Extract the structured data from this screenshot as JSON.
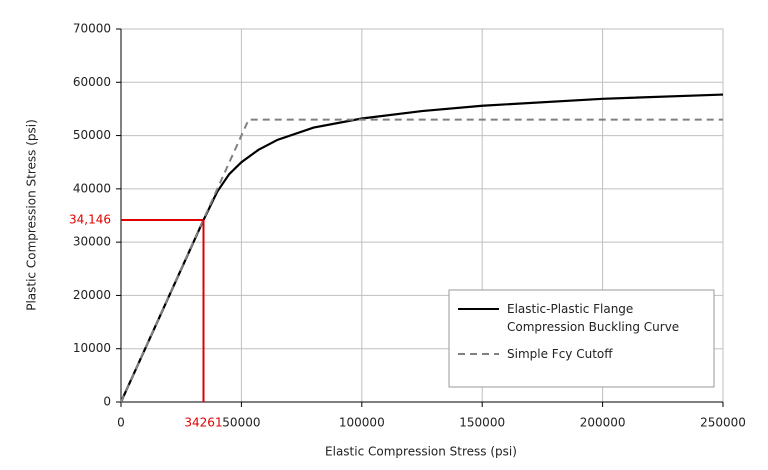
{
  "chart_data": {
    "type": "line",
    "x_label": "Elastic Compression Stress (psi)",
    "y_label": "Plastic Compression Stress (psi)",
    "xlim": [
      0,
      250000
    ],
    "ylim": [
      0,
      70000
    ],
    "xticks": [
      0,
      50000,
      100000,
      150000,
      200000,
      250000
    ],
    "yticks": [
      0,
      10000,
      20000,
      30000,
      40000,
      50000,
      60000,
      70000
    ],
    "grid": true,
    "legend_position": "lower right",
    "series": [
      {
        "name": "Elastic-Plastic Flange Compression Buckling Curve",
        "color": "#000000",
        "dash": false,
        "x": [
          0,
          34261,
          40000,
          45000,
          50000,
          57000,
          65000,
          80000,
          100000,
          125000,
          150000,
          200000,
          250000
        ],
        "values": [
          0,
          34146,
          39500,
          42800,
          45000,
          47300,
          49200,
          51500,
          53200,
          54600,
          55600,
          56900,
          57700
        ]
      },
      {
        "name": "Simple Fcy Cutoff",
        "color": "#808080",
        "dash": true,
        "x": [
          0,
          53000,
          250000
        ],
        "values": [
          0,
          53000,
          53000
        ]
      }
    ],
    "annotation": {
      "x": 34261,
      "y": {
        "value": 34146,
        "label": "34,146"
      },
      "color": "#e00000"
    }
  }
}
